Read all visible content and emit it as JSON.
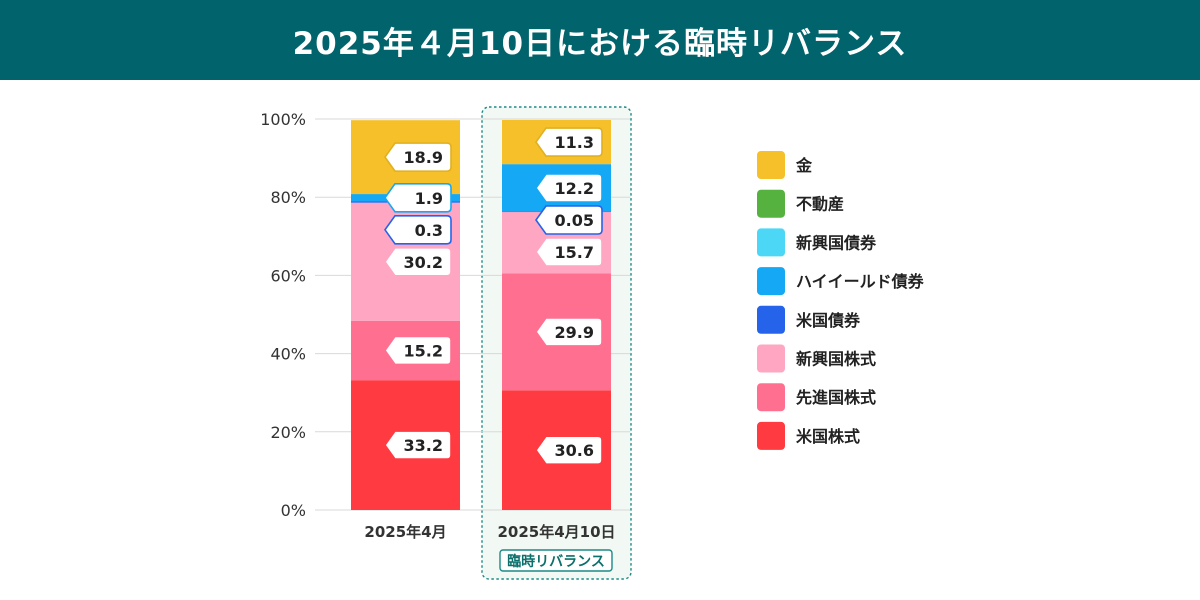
{
  "header": {
    "title": "2025年４月10日における臨時リバランス"
  },
  "chart_data": {
    "type": "stacked-bar",
    "title": "2025年４月10日における臨時リバランス",
    "categories": [
      "2025年4月",
      "2025年4月10日"
    ],
    "highlight": {
      "category_index": 1,
      "badge": "臨時リバランス"
    },
    "y_ticks": [
      "0%",
      "20%",
      "40%",
      "60%",
      "80%",
      "100%"
    ],
    "ylim": [
      0,
      100
    ],
    "series": [
      {
        "name": "米国株式",
        "color": "#ff3a40",
        "text_color": "#ff3a40",
        "values": [
          33.2,
          30.6
        ],
        "labels": [
          "33.2",
          "30.6"
        ]
      },
      {
        "name": "先進国株式",
        "color": "#ff7090",
        "text_color": "#ff7090",
        "values": [
          15.2,
          29.9
        ],
        "labels": [
          "15.2",
          "29.9"
        ]
      },
      {
        "name": "新興国株式",
        "color": "#ffa6c2",
        "text_color": "#ffa6c2",
        "values": [
          30.2,
          15.7
        ],
        "labels": [
          "30.2",
          "15.7"
        ]
      },
      {
        "name": "米国債券",
        "color": "#2563eb",
        "text_color": "#2563eb",
        "values": [
          0.3,
          0.05
        ],
        "labels": [
          "0.3",
          "0.05"
        ]
      },
      {
        "name": "ハイイールド債券",
        "color": "#14a8f5",
        "text_color": "#14a8f5",
        "values": [
          1.9,
          12.2
        ],
        "labels": [
          "1.9",
          "12.2"
        ]
      },
      {
        "name": "新興国債券",
        "color": "#4dd7f7",
        "text_color": "#4dd7f7",
        "values": [
          0,
          0
        ],
        "labels": [
          null,
          null
        ]
      },
      {
        "name": "不動産",
        "color": "#56b23f",
        "text_color": "#56b23f",
        "values": [
          0,
          0
        ],
        "labels": [
          null,
          null
        ]
      },
      {
        "name": "金",
        "color": "#f6c02a",
        "text_color": "#e0b020",
        "values": [
          18.9,
          11.3
        ],
        "labels": [
          "18.9",
          "11.3"
        ]
      }
    ],
    "legend": [
      "金",
      "不動産",
      "新興国債券",
      "ハイイールド債券",
      "米国債券",
      "新興国株式",
      "先進国株式",
      "米国株式"
    ]
  }
}
